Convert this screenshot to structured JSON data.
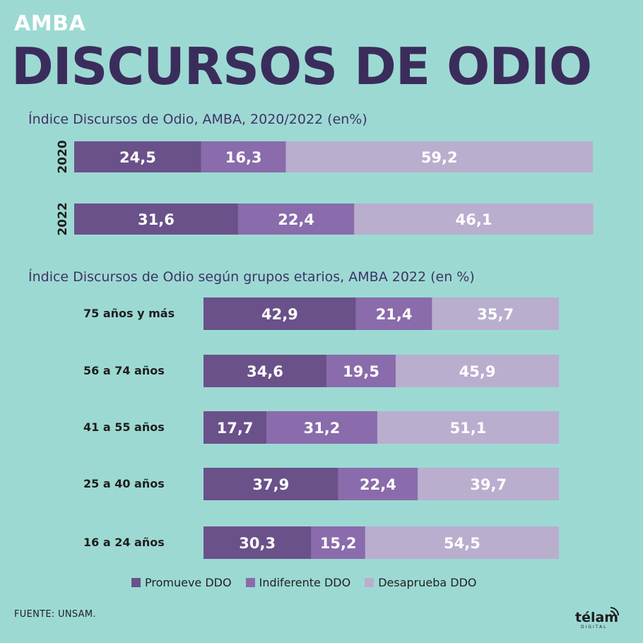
{
  "header": {
    "kicker": "AMBA",
    "title": "DISCURSOS DE ODIO"
  },
  "colors": {
    "background": "#9dd9d3",
    "promueve": "#6a5189",
    "indiferente": "#8a6bab",
    "desaprueba": "#b9aece",
    "title": "#3a2d5c"
  },
  "chart_data": [
    {
      "type": "bar",
      "orientation": "horizontal",
      "stacked": true,
      "title": "Índice Discursos de Odio, AMBA, 2020/2022 (en%)",
      "categories": [
        "2020",
        "2022"
      ],
      "series": [
        {
          "name": "Promueve DDO",
          "values": [
            "24,5",
            "31,6"
          ]
        },
        {
          "name": "Indiferente DDO",
          "values": [
            "16,3",
            "22,4"
          ]
        },
        {
          "name": "Desaprueba DDO",
          "values": [
            "59,2",
            "46,1"
          ]
        }
      ],
      "xlim": [
        0,
        100
      ]
    },
    {
      "type": "bar",
      "orientation": "horizontal",
      "stacked": true,
      "title": "Índice Discursos de Odio según grupos etarios, AMBA 2022 (en %)",
      "categories": [
        "75 años y más",
        "56 a 74 años",
        "41 a 55 años",
        "25 a 40 años",
        "16 a 24 años"
      ],
      "series": [
        {
          "name": "Promueve DDO",
          "values": [
            "42,9",
            "34,6",
            "17,7",
            "37,9",
            "30,3"
          ]
        },
        {
          "name": "Indiferente DDO",
          "values": [
            "21,4",
            "19,5",
            "31,2",
            "22,4",
            "15,2"
          ]
        },
        {
          "name": "Desaprueba DDO",
          "values": [
            "35,7",
            "45,9",
            "51,1",
            "39,7",
            "54,5"
          ]
        }
      ],
      "xlim": [
        0,
        100
      ]
    }
  ],
  "legend": [
    {
      "label": "Promueve DDO",
      "color": "#6a5189"
    },
    {
      "label": "Indiferente DDO",
      "color": "#8a6bab"
    },
    {
      "label": "Desaprueba DDO",
      "color": "#b9aece"
    }
  ],
  "footer": {
    "source": "FUENTE: UNSAM.",
    "logo_text": "télam",
    "logo_sub": "DIGITAL"
  }
}
